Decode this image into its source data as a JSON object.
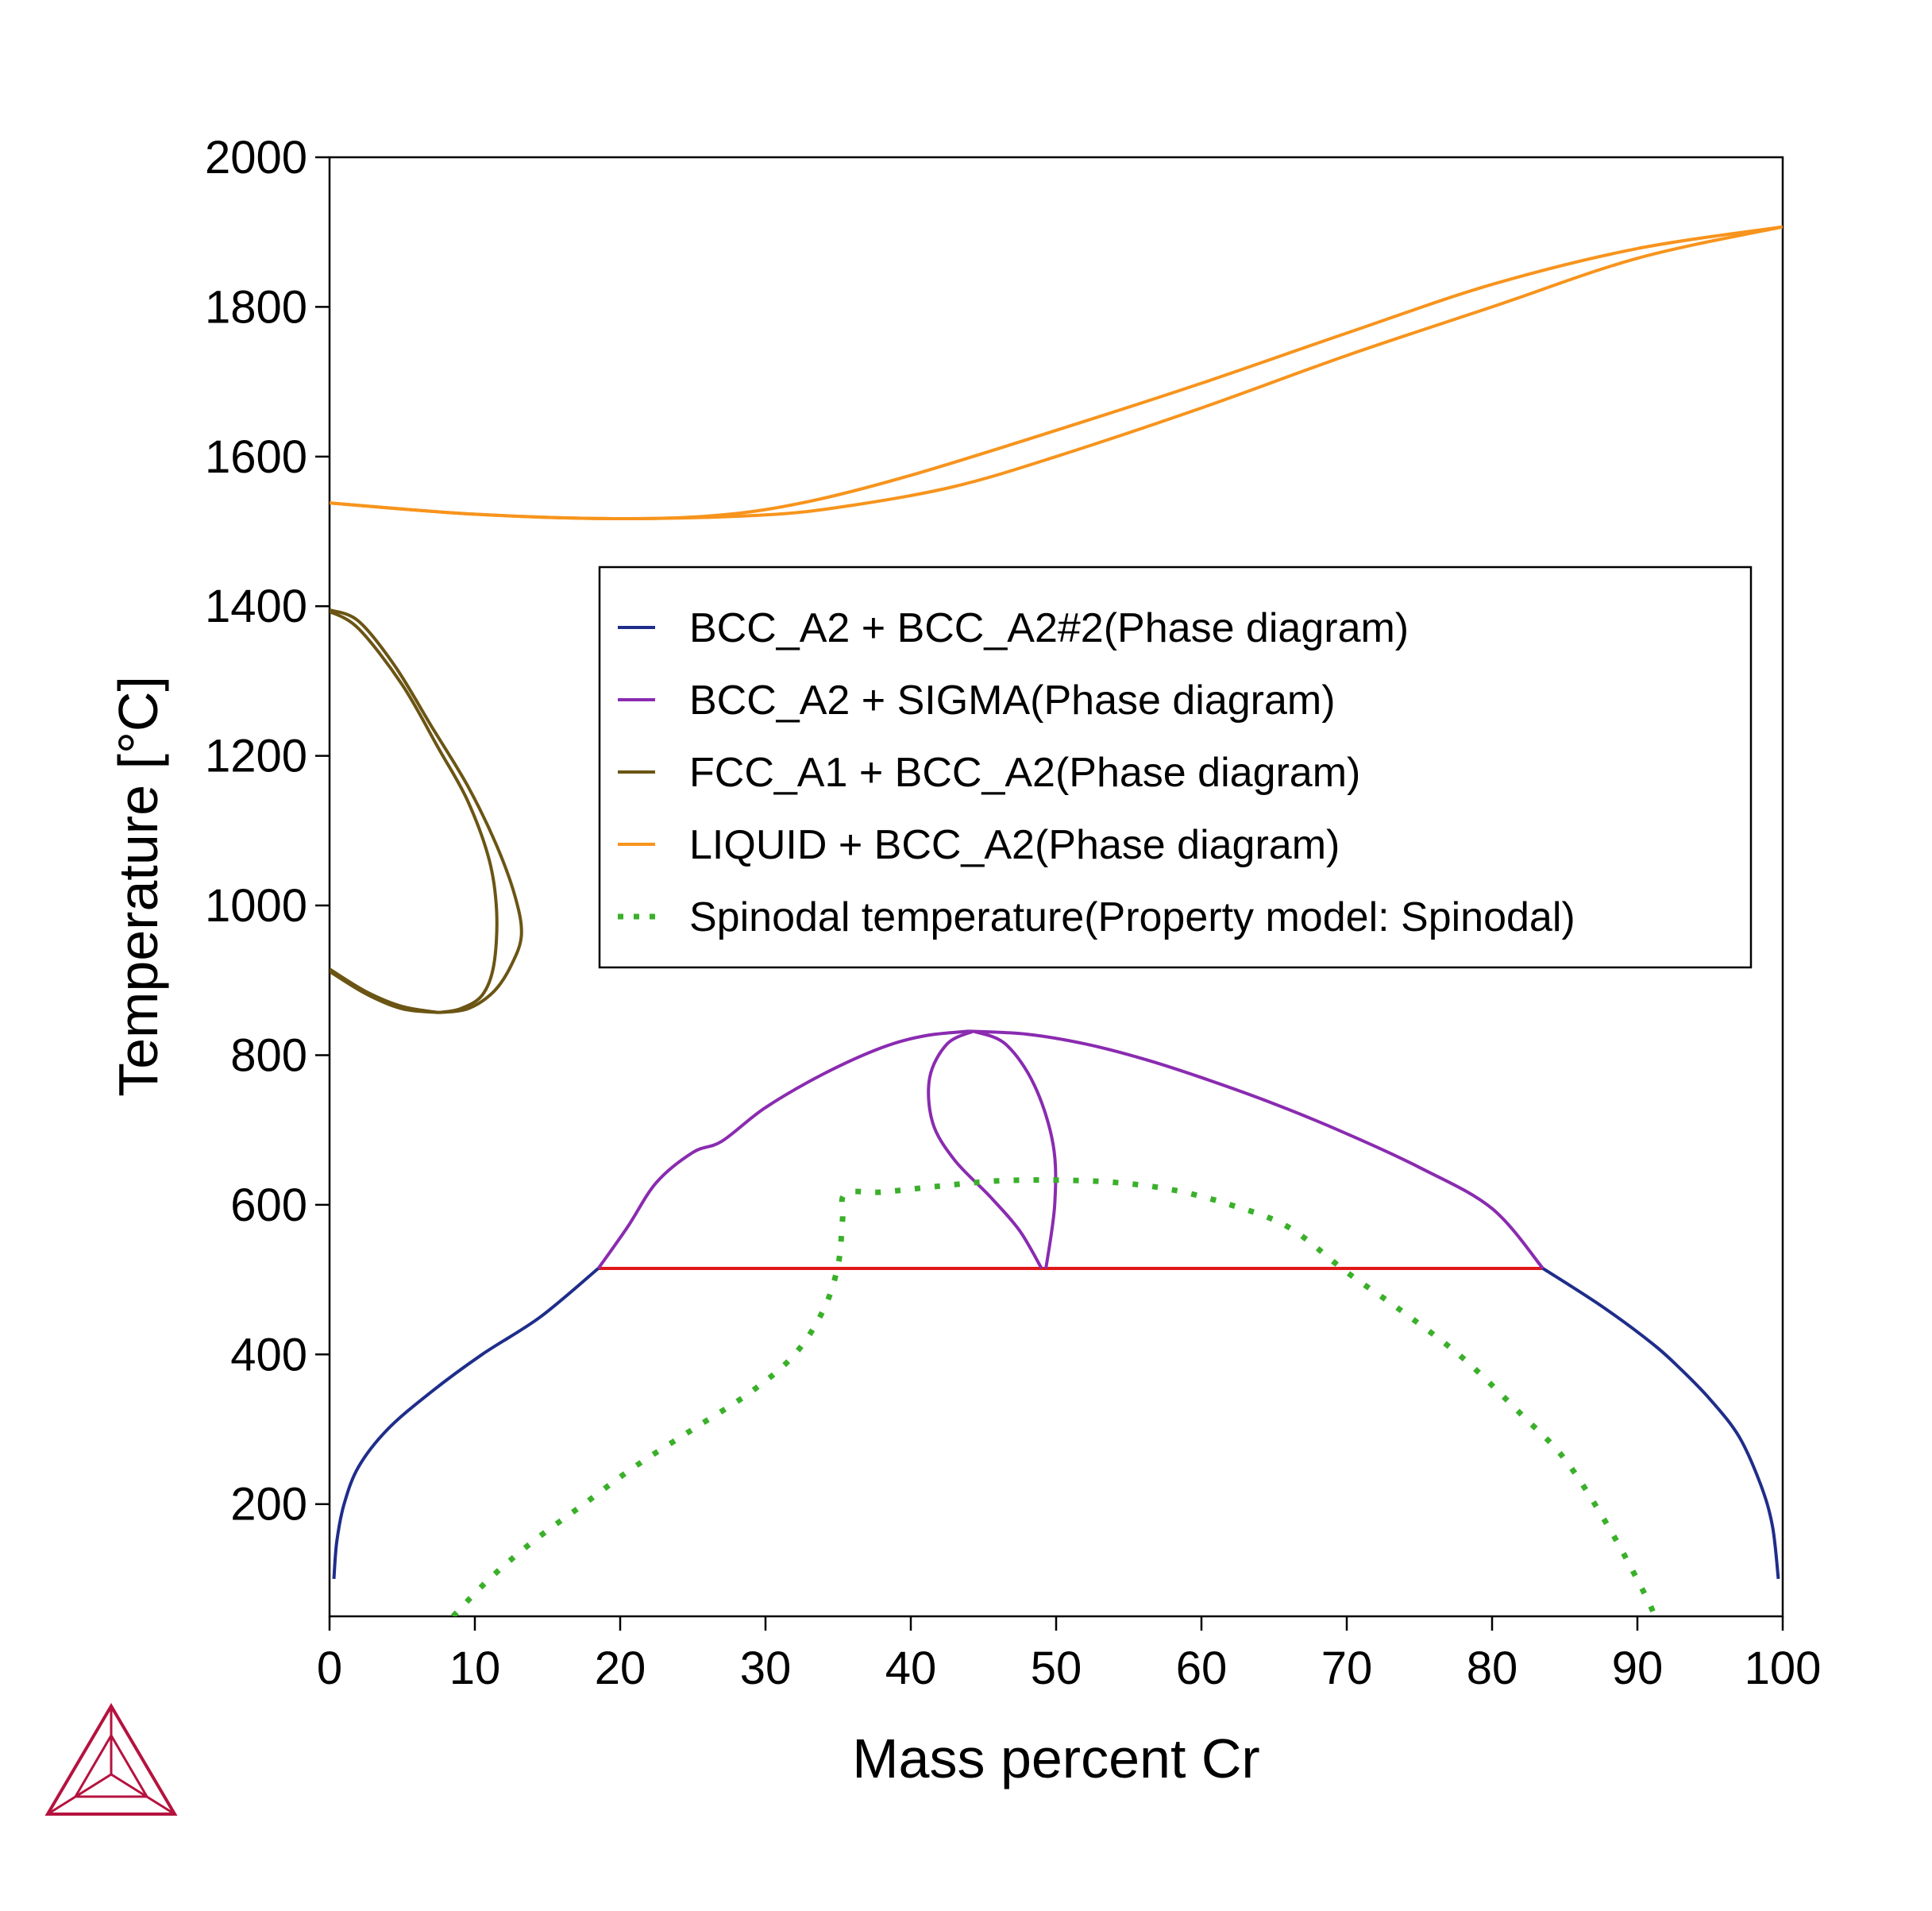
{
  "chart_data": {
    "type": "line",
    "xlabel": "Mass percent Cr",
    "ylabel": "Temperature [°C]",
    "xlim": [
      0,
      100
    ],
    "ylim": [
      50,
      2000
    ],
    "xticks": [
      0,
      10,
      20,
      30,
      40,
      50,
      60,
      70,
      80,
      90,
      100
    ],
    "yticks": [
      200,
      400,
      600,
      800,
      1000,
      1200,
      1400,
      1600,
      1800,
      2000
    ],
    "grid": false,
    "legend_position": "upper-right",
    "series": [
      {
        "name": "BCC_A2 + BCC_A2#2(Phase diagram)",
        "color": "#1f2d8a",
        "style": "solid",
        "segments": [
          [
            [
              0.3,
              100
            ],
            [
              0.5,
              150
            ],
            [
              1,
              200
            ],
            [
              2,
              250
            ],
            [
              4,
              300
            ],
            [
              7,
              350
            ],
            [
              10.5,
              400
            ],
            [
              14.5,
              450
            ],
            [
              18.5,
              515
            ]
          ],
          [
            [
              83.5,
              515
            ],
            [
              87.5,
              465
            ],
            [
              91,
              415
            ],
            [
              93,
              380
            ],
            [
              95,
              340
            ],
            [
              97,
              290
            ],
            [
              98.5,
              225
            ],
            [
              99.3,
              170
            ],
            [
              99.7,
              100
            ]
          ]
        ]
      },
      {
        "name": "BCC_A2 + SIGMA(Phase diagram)",
        "color": "#8a2bb0",
        "style": "solid",
        "segments": [
          [
            [
              18.5,
              515
            ],
            [
              20.5,
              570
            ],
            [
              22.5,
              630
            ],
            [
              25,
              670
            ],
            [
              27,
              685
            ],
            [
              30,
              730
            ],
            [
              34,
              775
            ],
            [
              38,
              810
            ],
            [
              41,
              826
            ],
            [
              44,
              832
            ]
          ],
          [
            [
              44,
              832
            ],
            [
              48,
              828
            ],
            [
              52,
              815
            ],
            [
              56,
              795
            ],
            [
              60,
              770
            ],
            [
              65,
              735
            ],
            [
              70,
              695
            ],
            [
              75,
              650
            ],
            [
              80,
              595
            ],
            [
              83.5,
              515
            ]
          ],
          [
            [
              44.3,
              832
            ],
            [
              42.5,
              815
            ],
            [
              41.3,
              770
            ],
            [
              41.5,
              710
            ],
            [
              43,
              660
            ],
            [
              45.5,
              610
            ],
            [
              47.5,
              565
            ],
            [
              49,
              515
            ]
          ],
          [
            [
              44.3,
              832
            ],
            [
              46.5,
              815
            ],
            [
              48.5,
              760
            ],
            [
              49.8,
              680
            ],
            [
              49.9,
              600
            ],
            [
              49.3,
              515
            ]
          ]
        ]
      },
      {
        "name": "FCC_A1 + BCC_A2(Phase diagram)",
        "color": "#6b5514",
        "style": "solid",
        "segments": [
          [
            [
              0,
              1395
            ],
            [
              2,
              1380
            ],
            [
              4.5,
              1320
            ],
            [
              7,
              1240
            ],
            [
              9.5,
              1160
            ],
            [
              11.5,
              1080
            ],
            [
              12.8,
              1010
            ],
            [
              13.2,
              960
            ],
            [
              12.5,
              920
            ],
            [
              11.3,
              885
            ],
            [
              9.5,
              862
            ],
            [
              7.5,
              857
            ]
          ],
          [
            [
              0,
              1393
            ],
            [
              2,
              1370
            ],
            [
              5,
              1295
            ],
            [
              7.5,
              1210
            ],
            [
              9.5,
              1140
            ],
            [
              11,
              1060
            ],
            [
              11.5,
              990
            ],
            [
              11.3,
              920
            ],
            [
              10.5,
              880
            ],
            [
              9,
              862
            ],
            [
              7.5,
              857
            ]
          ],
          [
            [
              7.5,
              857
            ],
            [
              5,
              865
            ],
            [
              2.5,
              885
            ],
            [
              0,
              915
            ]
          ],
          [
            [
              7.5,
              857
            ],
            [
              5,
              862
            ],
            [
              2.5,
              882
            ],
            [
              0,
              912
            ]
          ]
        ]
      },
      {
        "name": "LIQUID + BCC_A2(Phase diagram)",
        "color": "#f7941d",
        "style": "solid",
        "segments": [
          [
            [
              0,
              1538
            ],
            [
              10,
              1523
            ],
            [
              20,
              1517
            ],
            [
              27,
              1522
            ],
            [
              33,
              1540
            ],
            [
              40,
              1575
            ],
            [
              50,
              1635
            ],
            [
              60,
              1698
            ],
            [
              70,
              1765
            ],
            [
              80,
              1830
            ],
            [
              90,
              1878
            ],
            [
              100,
              1907
            ]
          ],
          [
            [
              0,
              1538
            ],
            [
              10,
              1523
            ],
            [
              20,
              1517
            ],
            [
              30,
              1522
            ],
            [
              36,
              1535
            ],
            [
              43,
              1560
            ],
            [
              50,
              1600
            ],
            [
              60,
              1665
            ],
            [
              70,
              1735
            ],
            [
              80,
              1800
            ],
            [
              90,
              1865
            ],
            [
              100,
              1907
            ]
          ]
        ]
      },
      {
        "name": "Spinodal temperature(Property model: Spinodal)",
        "color": "#3ab02a",
        "style": "dotted",
        "segments": [
          [
            [
              8.5,
              50
            ],
            [
              11,
              100
            ],
            [
              14,
              150
            ],
            [
              17.5,
              200
            ],
            [
              21,
              250
            ],
            [
              25,
              300
            ],
            [
              29,
              350
            ],
            [
              32,
              400
            ],
            [
              34,
              460
            ],
            [
              35,
              520
            ],
            [
              35.3,
              580
            ],
            [
              35.5,
              615
            ],
            [
              38,
              617
            ],
            [
              42,
              625
            ],
            [
              46,
              632
            ],
            [
              50,
              633
            ],
            [
              54,
              630
            ],
            [
              58,
              620
            ],
            [
              62,
              600
            ],
            [
              66,
              570
            ],
            [
              70,
              510
            ],
            [
              74,
              455
            ],
            [
              78,
              395
            ],
            [
              82,
              320
            ],
            [
              85,
              260
            ],
            [
              88,
              170
            ],
            [
              90.5,
              80
            ],
            [
              91.2,
              50
            ]
          ]
        ]
      }
    ],
    "tie_line": {
      "color": "#e01818",
      "points": [
        [
          18.5,
          515
        ],
        [
          83.5,
          515
        ]
      ]
    }
  },
  "logo": {
    "name": "thermo-calc-triangle-logo",
    "color": "#b5133f"
  }
}
